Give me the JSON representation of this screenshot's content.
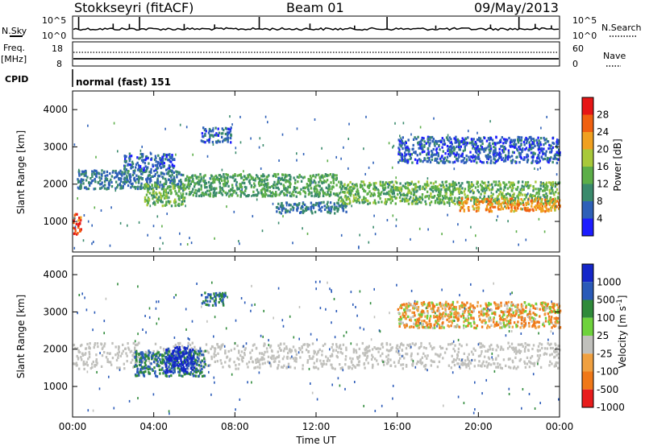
{
  "header": {
    "title": "Stokkseyri (fitACF)",
    "beam": "Beam 01",
    "date": "09/May/2013"
  },
  "noise_panel": {
    "left_label": "N.Sky",
    "right_label": "N.Search",
    "ticks_left": [
      "10^5",
      "10^0"
    ],
    "ticks_right": [
      "10^5",
      "10^0"
    ]
  },
  "freq_panel": {
    "left_label": "Freq.",
    "left_unit": "[MHz]",
    "right_label": "Nave",
    "ticks_left": [
      "18",
      "8"
    ],
    "ticks_right": [
      "60",
      "0"
    ]
  },
  "cpid": {
    "label": "CPID",
    "mode_text": "normal (fast) 151"
  },
  "x_axis": {
    "label": "Time UT",
    "ticks": [
      "00:00",
      "04:00",
      "08:00",
      "12:00",
      "16:00",
      "20:00",
      "00:00"
    ]
  },
  "colors": {
    "power": [
      "#1c1cff",
      "#2e60b8",
      "#3a8a6c",
      "#5cae48",
      "#a8c83a",
      "#f0a020",
      "#f06010",
      "#e61616"
    ],
    "velocity": [
      "#1426c8",
      "#2a5ab8",
      "#2f8a3a",
      "#6ed23c",
      "#c0c0bc",
      "#f0a040",
      "#f07818",
      "#e81c1c"
    ],
    "background": "#ffffff"
  },
  "chart_data": [
    {
      "type": "heatmap",
      "name": "power",
      "ylabel": "Slant Range [km]",
      "xlabel": "Time UT",
      "x_range_hours": [
        0,
        24
      ],
      "ylim": [
        180,
        4500
      ],
      "yticks": [
        1000,
        2000,
        3000,
        4000
      ],
      "colorbar": {
        "label": "Power [dB]",
        "ticks": [
          4,
          8,
          12,
          16,
          20,
          24,
          28
        ],
        "range": [
          0,
          32
        ]
      },
      "regions": [
        {
          "t0": 0.0,
          "t1": 0.4,
          "r0": 650,
          "r1": 1250,
          "v": 27
        },
        {
          "t0": 0.2,
          "t1": 5.5,
          "r0": 1900,
          "r1": 2400,
          "v": 8
        },
        {
          "t0": 2.5,
          "t1": 5.0,
          "r0": 2400,
          "r1": 2850,
          "v": 6
        },
        {
          "t0": 3.5,
          "t1": 5.5,
          "r0": 1450,
          "r1": 2050,
          "v": 14
        },
        {
          "t0": 6.3,
          "t1": 7.8,
          "r0": 3150,
          "r1": 3550,
          "v": 6
        },
        {
          "t0": 5.5,
          "t1": 13.0,
          "r0": 1700,
          "r1": 2300,
          "v": 12
        },
        {
          "t0": 10.0,
          "t1": 13.5,
          "r0": 1250,
          "r1": 1550,
          "v": 8
        },
        {
          "t0": 13.0,
          "t1": 24.0,
          "r0": 1500,
          "r1": 2100,
          "v": 14
        },
        {
          "t0": 19.0,
          "t1": 24.0,
          "r0": 1300,
          "r1": 1650,
          "v": 23
        },
        {
          "t0": 16.0,
          "t1": 24.0,
          "r0": 2600,
          "r1": 3300,
          "v": 6
        }
      ]
    },
    {
      "type": "heatmap",
      "name": "velocity",
      "ylabel": "Slant Range [km]",
      "xlabel": "Time UT",
      "x_range_hours": [
        0,
        24
      ],
      "ylim": [
        180,
        4500
      ],
      "yticks": [
        1000,
        2000,
        3000,
        4000
      ],
      "colorbar": {
        "label": "Velocity [m s^-1]",
        "ticks": [
          1000,
          500,
          100,
          25,
          -25,
          -100,
          -500,
          -1000
        ]
      },
      "regions": [
        {
          "t0": 0.0,
          "t1": 24.0,
          "r0": 1500,
          "r1": 2200,
          "v": 0
        },
        {
          "t0": 3.0,
          "t1": 6.5,
          "r0": 1300,
          "r1": 2000,
          "v": 300
        },
        {
          "t0": 4.5,
          "t1": 6.0,
          "r0": 1400,
          "r1": 2100,
          "v": 800
        },
        {
          "t0": 6.3,
          "t1": 7.5,
          "r0": 3200,
          "r1": 3550,
          "v": 300
        },
        {
          "t0": 16.0,
          "t1": 24.0,
          "r0": 2600,
          "r1": 3300,
          "v": -60
        }
      ]
    }
  ]
}
